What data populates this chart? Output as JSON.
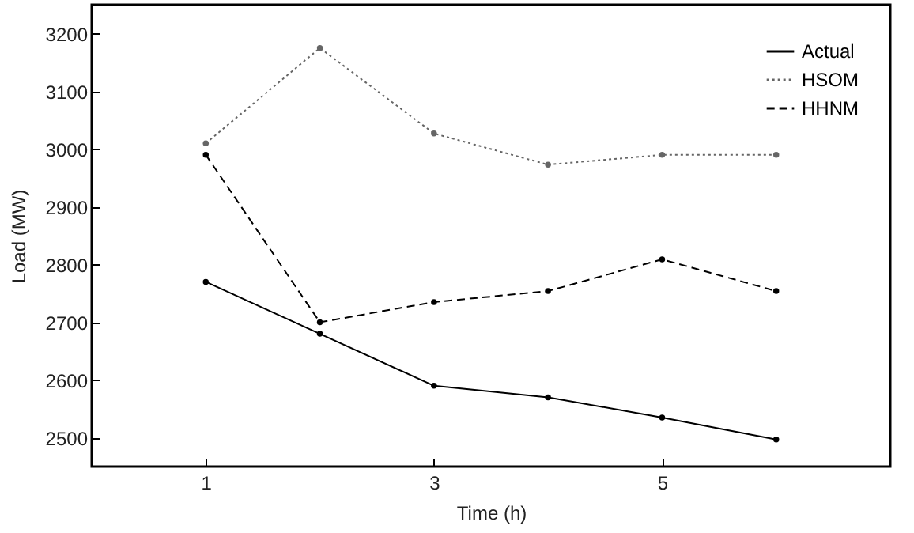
{
  "chart_data": {
    "type": "line",
    "xlabel": "Time (h)",
    "ylabel": "Load (MW)",
    "x": [
      1,
      2,
      3,
      4,
      5,
      6
    ],
    "series": [
      {
        "name": "Actual",
        "color": "#000000",
        "line_style": "solid",
        "values": [
          2770,
          2680,
          2590,
          2570,
          2535,
          2497
        ]
      },
      {
        "name": "HSOM",
        "color": "#666666",
        "line_style": "dotted",
        "values": [
          3010,
          3175,
          3027,
          2973,
          2990,
          2990
        ]
      },
      {
        "name": "HHNM",
        "color": "#000000",
        "line_style": "dashed",
        "values": [
          2990,
          2700,
          2735,
          2754,
          2809,
          2754
        ]
      }
    ],
    "xlim": [
      0,
      7
    ],
    "xticks": [
      1,
      3,
      5
    ],
    "ylim": [
      2450,
      3250
    ],
    "yticks": [
      2500,
      2600,
      2700,
      2800,
      2900,
      3000,
      3100,
      3200
    ],
    "grid": false,
    "legend": "top right",
    "marker": "circle"
  }
}
